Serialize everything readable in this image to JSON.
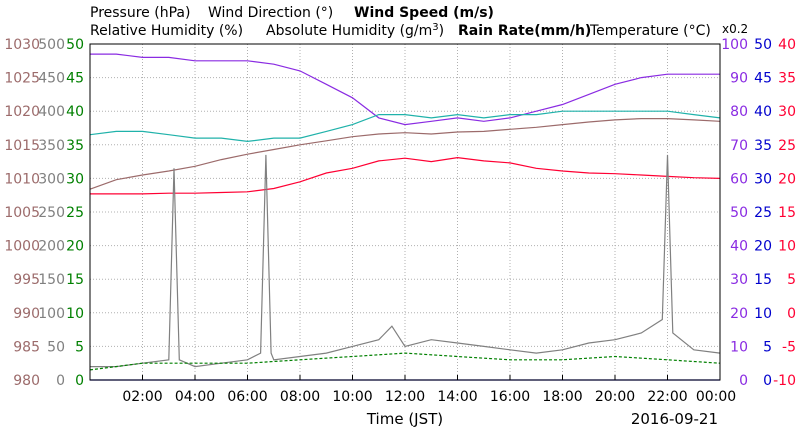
{
  "legend": {
    "pressure": "Pressure (hPa)",
    "wind_direction": "Wind Direction (°)",
    "wind_speed": "Wind Speed (m/s)",
    "relative_humidity": "Relative Humidity (%)",
    "absolute_humidity_prefix": "Absolute Humidity (g/m",
    "absolute_humidity_sup": "3",
    "absolute_humidity_suffix": ")",
    "rain_rate": "Rain Rate(mm/h)",
    "temperature": "Temperature (°C)",
    "abs_humidity_scale_note": "x0.2"
  },
  "axes": {
    "x_label": "Time (JST)",
    "date": "2016-09-21"
  },
  "colors": {
    "pressure": "#9c6b6b",
    "wind_direction": "#808080",
    "wind_speed": "#008000",
    "relative_humidity": "#8a2be2",
    "absolute_humidity": "#20b2aa",
    "rain_rate": "#0000cd",
    "temperature": "#ff0033",
    "grid": "#b0b0b0"
  },
  "chart_data": {
    "type": "line",
    "x_unit": "hour of day (JST)",
    "xlim": [
      0,
      24
    ],
    "x_ticks": [
      2,
      4,
      6,
      8,
      10,
      12,
      14,
      16,
      18,
      20,
      22,
      24
    ],
    "x_tick_labels": [
      "02:00",
      "04:00",
      "06:00",
      "08:00",
      "10:00",
      "12:00",
      "14:00",
      "16:00",
      "18:00",
      "20:00",
      "22:00",
      "00:00"
    ],
    "grid": true,
    "y_axes": [
      {
        "id": "pressure",
        "side": "left",
        "lim": [
          980,
          1030
        ],
        "ticks": [
          980,
          985,
          990,
          995,
          1000,
          1005,
          1010,
          1015,
          1020,
          1025,
          1030
        ]
      },
      {
        "id": "wind_direction",
        "side": "left",
        "lim": [
          0,
          500
        ],
        "ticks": [
          0,
          50,
          100,
          150,
          200,
          250,
          300,
          350,
          400,
          450,
          500
        ]
      },
      {
        "id": "wind_speed",
        "side": "left",
        "lim": [
          0,
          50
        ],
        "ticks": [
          0,
          5,
          10,
          15,
          20,
          25,
          30,
          35,
          40,
          45,
          50
        ]
      },
      {
        "id": "relative_humidity",
        "side": "right",
        "lim": [
          0,
          100
        ],
        "ticks": [
          0,
          10,
          20,
          30,
          40,
          50,
          60,
          70,
          80,
          90,
          100
        ]
      },
      {
        "id": "rain_rate",
        "side": "right",
        "lim": [
          0,
          50
        ],
        "ticks": [
          0,
          5,
          10,
          15,
          20,
          25,
          30,
          35,
          40,
          45,
          50
        ]
      },
      {
        "id": "temperature",
        "side": "right",
        "lim": [
          -10,
          40
        ],
        "ticks": [
          -10,
          -5,
          0,
          5,
          10,
          15,
          20,
          25,
          30,
          35,
          40
        ]
      }
    ],
    "series": [
      {
        "name": "Pressure (hPa)",
        "axis": "pressure",
        "x": [
          0,
          1,
          2,
          3,
          4,
          5,
          6,
          7,
          8,
          9,
          10,
          11,
          12,
          13,
          14,
          15,
          16,
          17,
          18,
          19,
          20,
          21,
          22,
          23,
          24
        ],
        "values": [
          1008.4,
          1009.8,
          1010.5,
          1011.1,
          1011.8,
          1012.8,
          1013.6,
          1014.3,
          1015.0,
          1015.6,
          1016.2,
          1016.6,
          1016.8,
          1016.6,
          1016.9,
          1017.0,
          1017.3,
          1017.6,
          1018.0,
          1018.4,
          1018.7,
          1018.9,
          1018.9,
          1018.7,
          1018.5
        ]
      },
      {
        "name": "Relative Humidity (%)",
        "axis": "relative_humidity",
        "x": [
          0,
          1,
          2,
          3,
          4,
          5,
          6,
          7,
          8,
          9,
          10,
          11,
          12,
          13,
          14,
          15,
          16,
          17,
          18,
          19,
          20,
          21,
          22,
          23,
          24
        ],
        "values": [
          97,
          97,
          96,
          96,
          95,
          95,
          95,
          94,
          92,
          88,
          84,
          78,
          76,
          77,
          78,
          77,
          78,
          80,
          82,
          85,
          88,
          90,
          91,
          91,
          91
        ]
      },
      {
        "name": "Absolute Humidity (g/m3)",
        "axis": "relative_humidity",
        "scale_note": "x0.2",
        "x": [
          0,
          1,
          2,
          3,
          4,
          5,
          6,
          7,
          8,
          9,
          10,
          11,
          12,
          13,
          14,
          15,
          16,
          17,
          18,
          19,
          20,
          21,
          22,
          23,
          24
        ],
        "values": [
          73,
          74,
          74,
          73,
          72,
          72,
          71,
          72,
          72,
          74,
          76,
          79,
          79,
          78,
          79,
          78,
          79,
          79,
          80,
          80,
          80,
          80,
          80,
          79,
          78
        ]
      },
      {
        "name": "Temperature (°C)",
        "axis": "temperature",
        "x": [
          0,
          1,
          2,
          3,
          4,
          5,
          6,
          7,
          8,
          9,
          10,
          11,
          12,
          13,
          14,
          15,
          16,
          17,
          18,
          19,
          20,
          21,
          22,
          23,
          24
        ],
        "values": [
          17.7,
          17.7,
          17.7,
          17.8,
          17.8,
          17.9,
          18.0,
          18.5,
          19.5,
          20.8,
          21.5,
          22.6,
          23.0,
          22.5,
          23.1,
          22.6,
          22.3,
          21.5,
          21.1,
          20.8,
          20.7,
          20.5,
          20.3,
          20.1,
          20.0
        ]
      },
      {
        "name": "Wind Direction (°)",
        "axis": "wind_direction",
        "x": [
          0,
          1,
          2,
          3,
          3.2,
          3.4,
          4,
          5,
          6,
          6.5,
          6.7,
          6.9,
          7,
          8,
          9,
          10,
          11,
          11.5,
          12,
          13,
          14,
          15,
          16,
          17,
          18,
          19,
          20,
          21,
          21.8,
          22,
          22.2,
          23,
          24
        ],
        "values": [
          20,
          20,
          25,
          30,
          315,
          30,
          20,
          25,
          30,
          40,
          335,
          40,
          30,
          35,
          40,
          50,
          60,
          80,
          50,
          60,
          55,
          50,
          45,
          40,
          45,
          55,
          60,
          70,
          90,
          335,
          70,
          45,
          40
        ]
      },
      {
        "name": "Wind Speed (m/s)",
        "axis": "wind_speed",
        "x": [
          0,
          2,
          4,
          6,
          8,
          10,
          12,
          14,
          16,
          18,
          20,
          22,
          24
        ],
        "values": [
          1.5,
          2.5,
          2.5,
          2.5,
          3.0,
          3.5,
          4.0,
          3.5,
          3.0,
          3.0,
          3.5,
          3.0,
          2.5
        ]
      },
      {
        "name": "Rain Rate(mm/h)",
        "axis": "rain_rate",
        "x": [
          0,
          24
        ],
        "values": [
          0,
          0
        ]
      }
    ]
  }
}
